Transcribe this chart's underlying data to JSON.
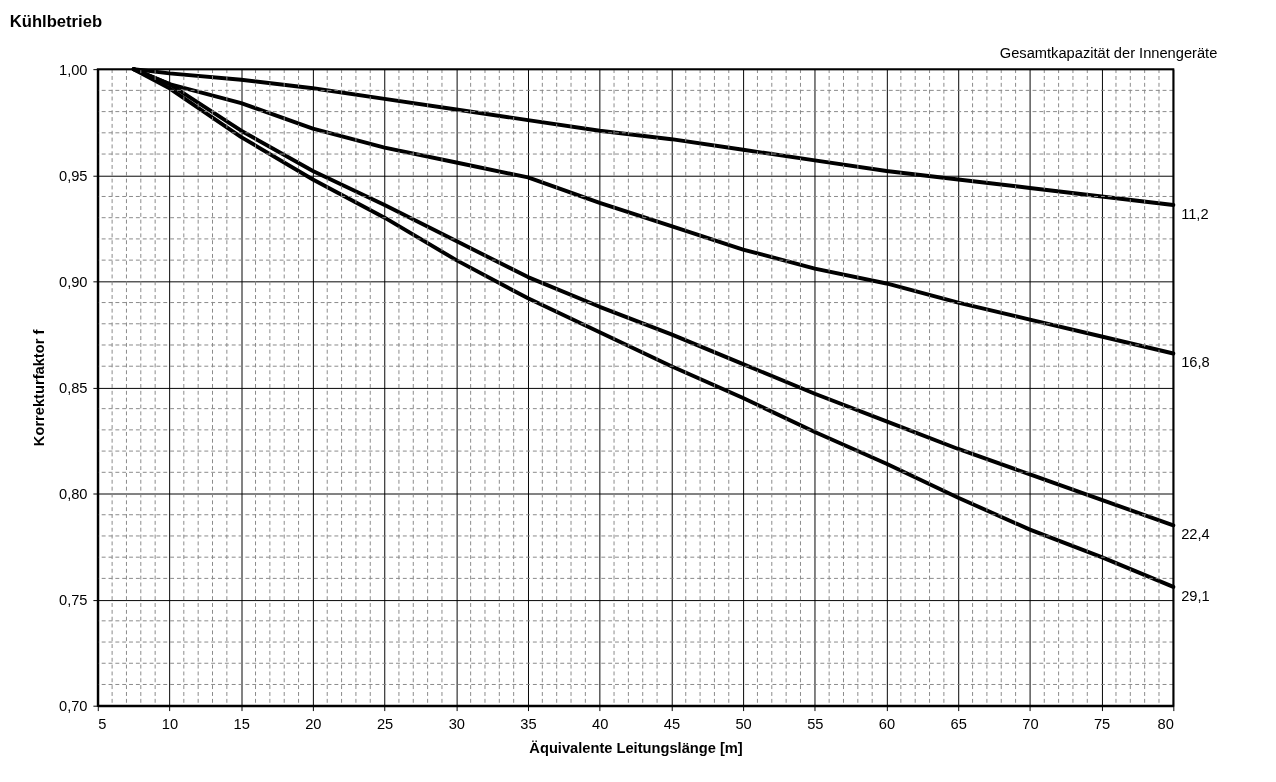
{
  "chart_data": {
    "type": "line",
    "title": "Kühlbetrieb",
    "xlabel": "Äquivalente Leitungslänge [m]",
    "ylabel": "Korrekturfaktor f",
    "legend_title": "Gesamtkapazität der Innengeräte",
    "x": [
      7.5,
      10,
      15,
      20,
      25,
      30,
      35,
      40,
      45,
      50,
      55,
      60,
      65,
      70,
      75,
      80
    ],
    "series": [
      {
        "name": "11,2",
        "color": "#000000",
        "values": [
          1.0,
          0.998,
          0.995,
          0.991,
          0.986,
          0.981,
          0.976,
          0.971,
          0.967,
          0.962,
          0.957,
          0.952,
          0.948,
          0.944,
          0.94,
          0.936
        ]
      },
      {
        "name": "16,8",
        "color": "#000000",
        "values": [
          1.0,
          0.993,
          0.984,
          0.972,
          0.963,
          0.956,
          0.949,
          0.937,
          0.926,
          0.915,
          0.906,
          0.899,
          0.89,
          0.882,
          0.874,
          0.866
        ]
      },
      {
        "name": "22,4",
        "color": "#000000",
        "values": [
          1.0,
          0.993,
          0.971,
          0.952,
          0.936,
          0.919,
          0.902,
          0.888,
          0.875,
          0.861,
          0.847,
          0.834,
          0.821,
          0.809,
          0.797,
          0.785
        ]
      },
      {
        "name": "29,1",
        "color": "#000000",
        "values": [
          1.0,
          0.991,
          0.968,
          0.948,
          0.93,
          0.91,
          0.892,
          0.876,
          0.86,
          0.845,
          0.829,
          0.814,
          0.798,
          0.783,
          0.77,
          0.756
        ]
      }
    ],
    "xlim": [
      5,
      80
    ],
    "xticks": [
      5,
      10,
      15,
      20,
      25,
      30,
      35,
      40,
      45,
      50,
      55,
      60,
      65,
      70,
      75,
      80
    ],
    "ylim": [
      0.7,
      1.0
    ],
    "yticks": [
      {
        "value": 0.7,
        "label": "0,70"
      },
      {
        "value": 0.75,
        "label": "0,75"
      },
      {
        "value": 0.8,
        "label": "0,80"
      },
      {
        "value": 0.85,
        "label": "0,85"
      },
      {
        "value": 0.9,
        "label": "0,90"
      },
      {
        "value": 0.95,
        "label": "0,95"
      },
      {
        "value": 1.0,
        "label": "1,00"
      }
    ],
    "grid": true,
    "marker": "none",
    "line_style": "solid"
  }
}
